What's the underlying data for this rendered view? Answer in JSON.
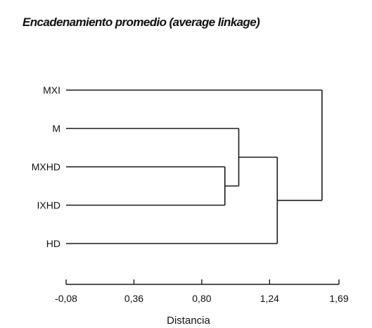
{
  "chart_data": {
    "type": "dendrogram",
    "title": "Encadenamiento promedio (average linkage)",
    "xlabel": "Distancia",
    "xlim": [
      -0.08,
      1.69
    ],
    "xticks": [
      "-0,08",
      "0,36",
      "0,80",
      "1,24",
      "1,69"
    ],
    "xtick_values": [
      -0.08,
      0.36,
      0.8,
      1.24,
      1.69
    ],
    "leaves": [
      "MXI",
      "M",
      "MXHD",
      "IXHD",
      "HD"
    ],
    "merges": [
      {
        "left": "MXHD",
        "right": "IXHD",
        "distance": 0.95
      },
      {
        "left": "M",
        "right": "MXHD+IXHD",
        "distance": 1.04
      },
      {
        "left": "M+MXHD+IXHD",
        "right": "HD",
        "distance": 1.29
      },
      {
        "left": "MXI",
        "right": "M+MXHD+IXHD+HD",
        "distance": 1.58
      }
    ],
    "grid": false,
    "legend": "none"
  }
}
